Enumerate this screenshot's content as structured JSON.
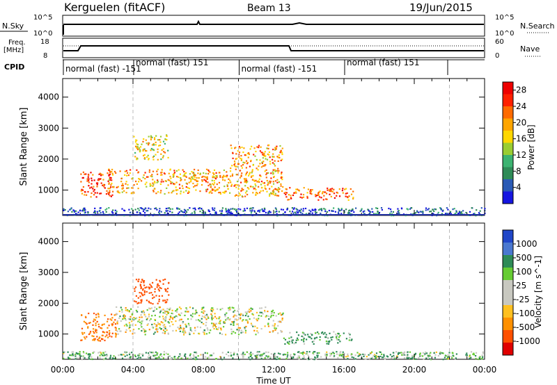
{
  "header": {
    "site": "Kerguelen (fitACF)",
    "beam": "Beam 13",
    "date": "19/Jun/2015"
  },
  "summary": {
    "nsky_label": "N.Sky",
    "nsearch_label": "N.Search",
    "freq_label": "Freq.",
    "freq_unit": "[MHz]",
    "nave_label": "Nave",
    "cpid_label": "CPID",
    "left_ticks_top": [
      "10^5",
      "10^0"
    ],
    "right_ticks_top": [
      "10^5",
      "10^0"
    ],
    "freq_ticks": [
      "18",
      "8"
    ],
    "nave_ticks": [
      "60",
      "0"
    ],
    "cpid_segments": [
      {
        "label": "normal (fast) -151",
        "start": 0,
        "end": 4
      },
      {
        "label": "normal (fast) 151",
        "start": 4,
        "end": 10
      },
      {
        "label": "normal (fast) -151",
        "start": 10,
        "end": 16
      },
      {
        "label": "normal (fast) 151",
        "start": 16,
        "end": 24
      }
    ]
  },
  "colors": {
    "power": [
      "#1515e0",
      "#2a5ab5",
      "#2e8b57",
      "#3cb371",
      "#9acd32",
      "#ffd700",
      "#ffa500",
      "#ff6a00",
      "#ff2000",
      "#ee0000"
    ],
    "velocity": [
      "#2046c8",
      "#4a78d0",
      "#2e8b57",
      "#66cc33",
      "#c8c8c0",
      "#c8c8c0",
      "#ffc020",
      "#ff9000",
      "#ff5000",
      "#e00000"
    ]
  },
  "chart_data": [
    {
      "type": "heatmap",
      "panel": "power",
      "ylabel": "Slant Range [km]",
      "yticks": [
        "1000",
        "2000",
        "3000",
        "4000"
      ],
      "ylim": [
        180,
        4600
      ],
      "xlim": [
        0,
        24
      ],
      "colorbar_label": "Power [dB]",
      "colorbar_ticks": [
        "4",
        "8",
        "12",
        "16",
        "20",
        "24",
        "28"
      ],
      "colorbar_range": [
        0,
        30
      ],
      "blobs": [
        {
          "t0": 1.0,
          "t1": 2.8,
          "r0": 800,
          "r1": 1600,
          "level": 8
        },
        {
          "t0": 2.5,
          "t1": 9.5,
          "r0": 900,
          "r1": 1700,
          "level": 6
        },
        {
          "t0": 9.5,
          "t1": 12.5,
          "r0": 800,
          "r1": 2500,
          "level": 6
        },
        {
          "t0": 12.5,
          "t1": 16.5,
          "r0": 700,
          "r1": 1100,
          "level": 7
        },
        {
          "t0": 4.0,
          "t1": 6.0,
          "r0": 2000,
          "r1": 2800,
          "level": 5
        },
        {
          "t0": 0.0,
          "t1": 24.0,
          "r0": 200,
          "r1": 450,
          "level": 1
        }
      ]
    },
    {
      "type": "heatmap",
      "panel": "velocity",
      "ylabel": "Slant Range [km]",
      "xlabel": "Time UT",
      "xticks": [
        "00:00",
        "04:00",
        "08:00",
        "12:00",
        "16:00",
        "20:00",
        "00:00"
      ],
      "yticks": [
        "1000",
        "2000",
        "3000",
        "4000"
      ],
      "ylim": [
        180,
        4600
      ],
      "xlim": [
        0,
        24
      ],
      "colorbar_label": "Velocity [m s^-1]",
      "colorbar_ticks": [
        "1000",
        "500",
        "100",
        "25",
        "-25",
        "-100",
        "-500",
        "-1000"
      ],
      "blobs": [
        {
          "t0": 1.0,
          "t1": 3.0,
          "r0": 800,
          "r1": 1700,
          "value": -300
        },
        {
          "t0": 3.0,
          "t1": 12.5,
          "r0": 1000,
          "r1": 1900,
          "value": 0
        },
        {
          "t0": 12.5,
          "t1": 16.5,
          "r0": 700,
          "r1": 1100,
          "value": 80
        },
        {
          "t0": 4.0,
          "t1": 6.0,
          "r0": 2000,
          "r1": 2800,
          "value": -400
        },
        {
          "t0": 0.0,
          "t1": 24.0,
          "r0": 200,
          "r1": 450,
          "value": 50
        }
      ]
    }
  ]
}
